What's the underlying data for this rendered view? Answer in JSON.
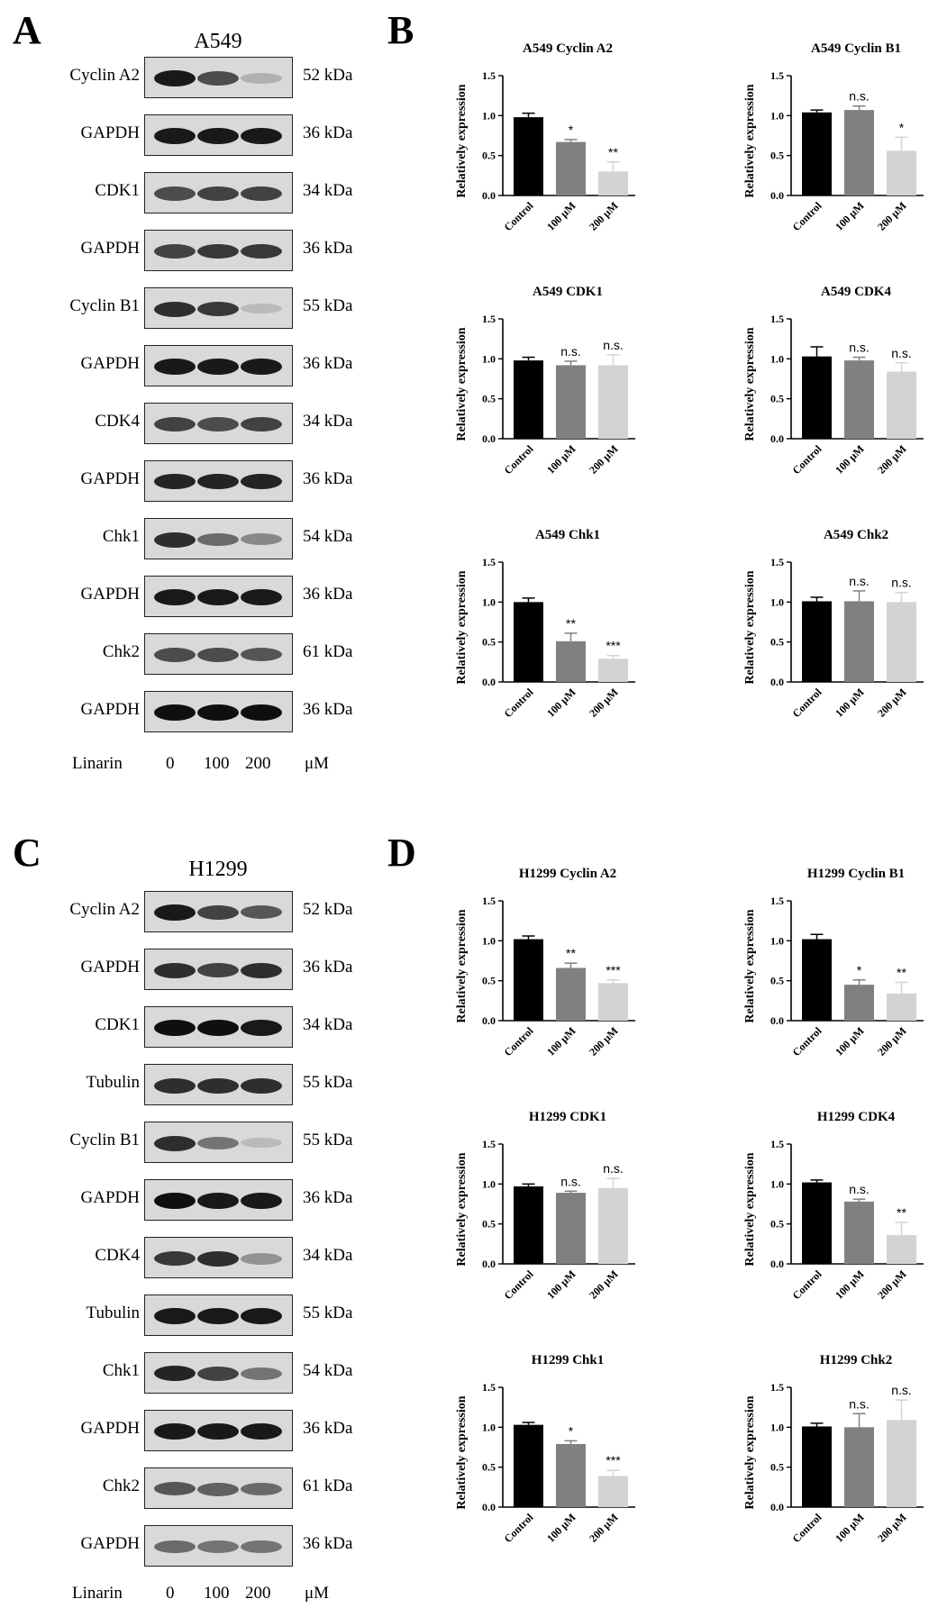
{
  "panels": {
    "A": "A",
    "B": "B",
    "C": "C",
    "D": "D"
  },
  "blots": [
    {
      "cell_line": "A549",
      "treatment_label": "Linarin",
      "doses": [
        "0",
        "100",
        "200"
      ],
      "dose_unit": "μM",
      "rows": [
        {
          "label": "Cyclin A2",
          "kda": "52 kDa",
          "intensity": [
            0.95,
            0.7,
            0.2
          ]
        },
        {
          "label": "GAPDH",
          "kda": "36 kDa",
          "intensity": [
            0.95,
            0.95,
            0.95
          ]
        },
        {
          "label": "CDK1",
          "kda": "34 kDa",
          "intensity": [
            0.7,
            0.75,
            0.75
          ]
        },
        {
          "label": "GAPDH",
          "kda": "36 kDa",
          "intensity": [
            0.75,
            0.8,
            0.8
          ]
        },
        {
          "label": "Cyclin B1",
          "kda": "55 kDa",
          "intensity": [
            0.85,
            0.8,
            0.15
          ]
        },
        {
          "label": "GAPDH",
          "kda": "36 kDa",
          "intensity": [
            0.95,
            0.95,
            0.95
          ]
        },
        {
          "label": "CDK4",
          "kda": "34 kDa",
          "intensity": [
            0.75,
            0.7,
            0.75
          ]
        },
        {
          "label": "GAPDH",
          "kda": "36 kDa",
          "intensity": [
            0.9,
            0.9,
            0.9
          ]
        },
        {
          "label": "Chk1",
          "kda": "54 kDa",
          "intensity": [
            0.85,
            0.55,
            0.4
          ]
        },
        {
          "label": "GAPDH",
          "kda": "36 kDa",
          "intensity": [
            0.95,
            0.95,
            0.95
          ]
        },
        {
          "label": "Chk2",
          "kda": "61 kDa",
          "intensity": [
            0.7,
            0.7,
            0.65
          ]
        },
        {
          "label": "GAPDH",
          "kda": "36 kDa",
          "intensity": [
            1.0,
            1.0,
            1.0
          ]
        }
      ]
    },
    {
      "cell_line": "H1299",
      "treatment_label": "Linarin",
      "doses": [
        "0",
        "100",
        "200"
      ],
      "dose_unit": "μM",
      "rows": [
        {
          "label": "Cyclin A2",
          "kda": "52 kDa",
          "intensity": [
            0.95,
            0.75,
            0.65
          ]
        },
        {
          "label": "GAPDH",
          "kda": "36 kDa",
          "intensity": [
            0.85,
            0.75,
            0.85
          ]
        },
        {
          "label": "CDK1",
          "kda": "34 kDa",
          "intensity": [
            1.0,
            1.0,
            0.95
          ]
        },
        {
          "label": "Tubulin",
          "kda": "55 kDa",
          "intensity": [
            0.85,
            0.85,
            0.85
          ]
        },
        {
          "label": "Cyclin B1",
          "kda": "55 kDa",
          "intensity": [
            0.85,
            0.5,
            0.15
          ]
        },
        {
          "label": "GAPDH",
          "kda": "36 kDa",
          "intensity": [
            1.0,
            0.95,
            0.95
          ]
        },
        {
          "label": "CDK4",
          "kda": "34 kDa",
          "intensity": [
            0.8,
            0.85,
            0.35
          ]
        },
        {
          "label": "Tubulin",
          "kda": "55 kDa",
          "intensity": [
            0.95,
            0.95,
            0.95
          ]
        },
        {
          "label": "Chk1",
          "kda": "54 kDa",
          "intensity": [
            0.9,
            0.75,
            0.5
          ]
        },
        {
          "label": "GAPDH",
          "kda": "36 kDa",
          "intensity": [
            0.95,
            0.95,
            0.95
          ]
        },
        {
          "label": "Chk2",
          "kda": "61 kDa",
          "intensity": [
            0.65,
            0.6,
            0.55
          ]
        },
        {
          "label": "GAPDH",
          "kda": "36 kDa",
          "intensity": [
            0.55,
            0.5,
            0.5
          ]
        }
      ]
    }
  ],
  "bar_colors": [
    "#000000",
    "#808080",
    "#d3d3d3"
  ],
  "chart_data": [
    {
      "type": "bar",
      "title": "A549 Cyclin A2",
      "ylabel": "Relatively expression",
      "categories": [
        "Control",
        "100 μM",
        "200 μM"
      ],
      "values": [
        0.98,
        0.67,
        0.3
      ],
      "errors": [
        0.05,
        0.03,
        0.12
      ],
      "significance": [
        "",
        "*",
        "**"
      ],
      "ylim": [
        0,
        1.5
      ],
      "yticks": [
        "0.0",
        "0.5",
        "1.0",
        "1.5"
      ]
    },
    {
      "type": "bar",
      "title": "A549 Cyclin B1",
      "ylabel": "Relatively expression",
      "categories": [
        "Control",
        "100 μM",
        "200 μM"
      ],
      "values": [
        1.04,
        1.07,
        0.56
      ],
      "errors": [
        0.03,
        0.05,
        0.17
      ],
      "significance": [
        "",
        "n.s.",
        "*"
      ],
      "ylim": [
        0,
        1.5
      ],
      "yticks": [
        "0.0",
        "0.5",
        "1.0",
        "1.5"
      ]
    },
    {
      "type": "bar",
      "title": "A549 CDK1",
      "ylabel": "Relatively expression",
      "categories": [
        "Control",
        "100 μM",
        "200 μM"
      ],
      "values": [
        0.98,
        0.92,
        0.92
      ],
      "errors": [
        0.04,
        0.05,
        0.13
      ],
      "significance": [
        "",
        "n.s.",
        "n.s."
      ],
      "ylim": [
        0,
        1.5
      ],
      "yticks": [
        "0.0",
        "0.5",
        "1.0",
        "1.5"
      ]
    },
    {
      "type": "bar",
      "title": "A549 CDK4",
      "ylabel": "Relatively expression",
      "categories": [
        "Control",
        "100 μM",
        "200 μM"
      ],
      "values": [
        1.03,
        0.98,
        0.84
      ],
      "errors": [
        0.12,
        0.04,
        0.11
      ],
      "significance": [
        "",
        "n.s.",
        "n.s."
      ],
      "ylim": [
        0,
        1.5
      ],
      "yticks": [
        "0.0",
        "0.5",
        "1.0",
        "1.5"
      ]
    },
    {
      "type": "bar",
      "title": "A549 Chk1",
      "ylabel": "Relatively expression",
      "categories": [
        "Control",
        "100 μM",
        "200 μM"
      ],
      "values": [
        1.0,
        0.51,
        0.29
      ],
      "errors": [
        0.05,
        0.1,
        0.04
      ],
      "significance": [
        "",
        "**",
        "***"
      ],
      "ylim": [
        0,
        1.5
      ],
      "yticks": [
        "0.0",
        "0.5",
        "1.0",
        "1.5"
      ]
    },
    {
      "type": "bar",
      "title": "A549 Chk2",
      "ylabel": "Relatively expression",
      "categories": [
        "Control",
        "100 μM",
        "200 μM"
      ],
      "values": [
        1.01,
        1.01,
        1.0
      ],
      "errors": [
        0.05,
        0.13,
        0.12
      ],
      "significance": [
        "",
        "n.s.",
        "n.s."
      ],
      "ylim": [
        0,
        1.5
      ],
      "yticks": [
        "0.0",
        "0.5",
        "1.0",
        "1.5"
      ]
    },
    {
      "type": "bar",
      "title": "H1299 Cyclin A2",
      "ylabel": "Relatively expression",
      "categories": [
        "Control",
        "100 μM",
        "200 μM"
      ],
      "values": [
        1.02,
        0.66,
        0.47
      ],
      "errors": [
        0.04,
        0.06,
        0.04
      ],
      "significance": [
        "",
        "**",
        "***"
      ],
      "ylim": [
        0,
        1.5
      ],
      "yticks": [
        "0.0",
        "0.5",
        "1.0",
        "1.5"
      ]
    },
    {
      "type": "bar",
      "title": "H1299 Cyclin B1",
      "ylabel": "Relatively expression",
      "categories": [
        "Control",
        "100 μM",
        "200 μM"
      ],
      "values": [
        1.02,
        0.45,
        0.34
      ],
      "errors": [
        0.06,
        0.06,
        0.14
      ],
      "significance": [
        "",
        "*",
        "**"
      ],
      "ylim": [
        0,
        1.5
      ],
      "yticks": [
        "0.0",
        "0.5",
        "1.0",
        "1.5"
      ]
    },
    {
      "type": "bar",
      "title": "H1299 CDK1",
      "ylabel": "Relatively expression",
      "categories": [
        "Control",
        "100 μM",
        "200 μM"
      ],
      "values": [
        0.97,
        0.89,
        0.95
      ],
      "errors": [
        0.03,
        0.02,
        0.12
      ],
      "significance": [
        "",
        "n.s.",
        "n.s."
      ],
      "ylim": [
        0,
        1.5
      ],
      "yticks": [
        "0.0",
        "0.5",
        "1.0",
        "1.5"
      ]
    },
    {
      "type": "bar",
      "title": "H1299 CDK4",
      "ylabel": "Relatively expression",
      "categories": [
        "Control",
        "100 μM",
        "200 μM"
      ],
      "values": [
        1.02,
        0.78,
        0.36
      ],
      "errors": [
        0.03,
        0.03,
        0.16
      ],
      "significance": [
        "",
        "n.s.",
        "**"
      ],
      "ylim": [
        0,
        1.5
      ],
      "yticks": [
        "0.0",
        "0.5",
        "1.0",
        "1.5"
      ]
    },
    {
      "type": "bar",
      "title": "H1299 Chk1",
      "ylabel": "Relatively expression",
      "categories": [
        "Control",
        "100 μM",
        "200 μM"
      ],
      "values": [
        1.03,
        0.79,
        0.39
      ],
      "errors": [
        0.03,
        0.04,
        0.07
      ],
      "significance": [
        "",
        "*",
        "***"
      ],
      "ylim": [
        0,
        1.5
      ],
      "yticks": [
        "0.0",
        "0.5",
        "1.0",
        "1.5"
      ]
    },
    {
      "type": "bar",
      "title": "H1299 Chk2",
      "ylabel": "Relatively expression",
      "categories": [
        "Control",
        "100 μM",
        "200 μM"
      ],
      "values": [
        1.01,
        1.0,
        1.09
      ],
      "errors": [
        0.04,
        0.17,
        0.25
      ],
      "significance": [
        "",
        "n.s.",
        "n.s."
      ],
      "ylim": [
        0,
        1.5
      ],
      "yticks": [
        "0.0",
        "0.5",
        "1.0",
        "1.5"
      ]
    }
  ]
}
